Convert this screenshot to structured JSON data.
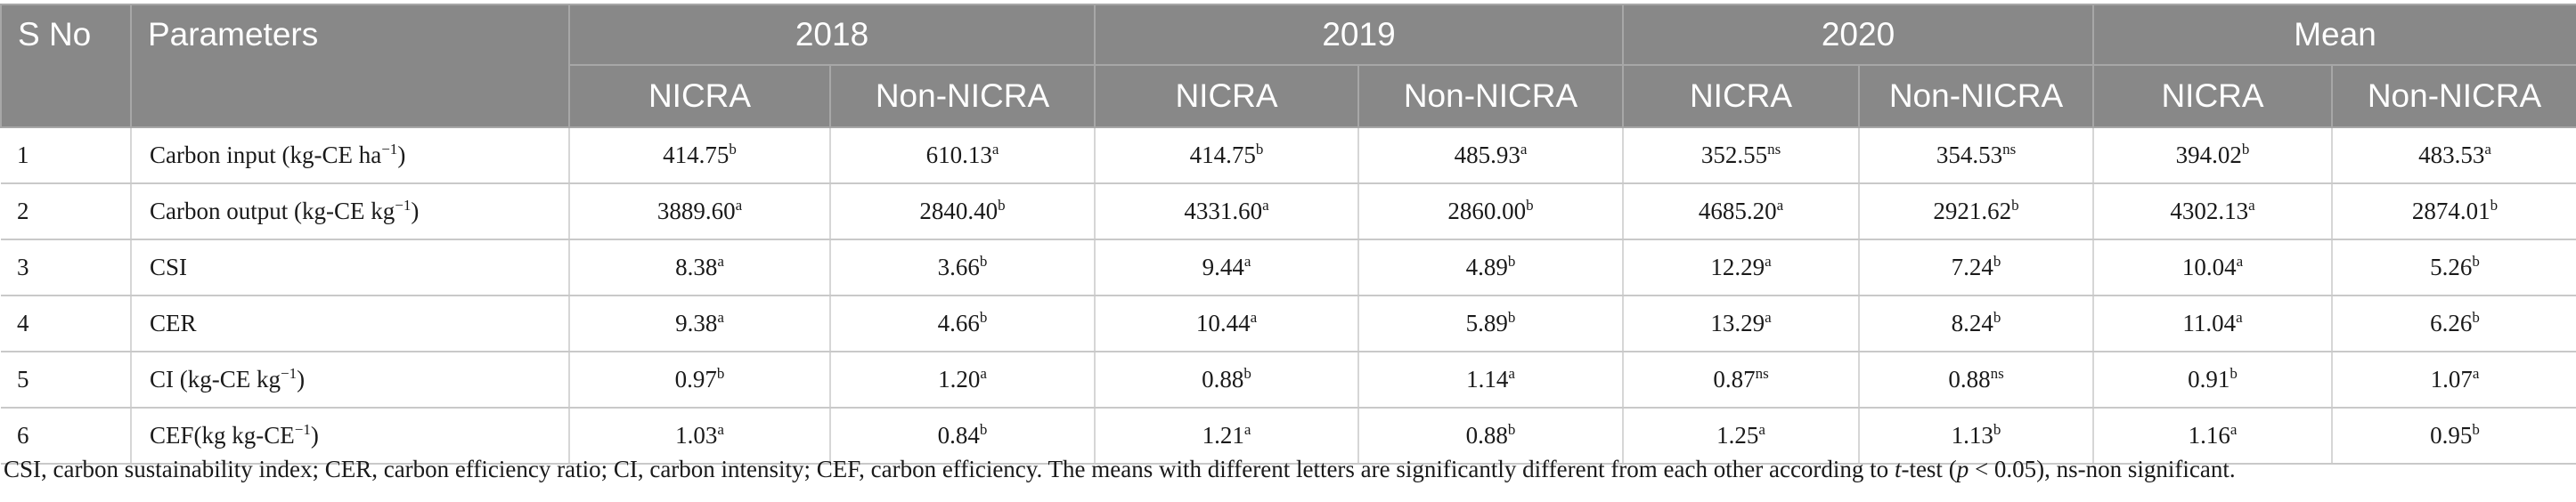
{
  "headers": {
    "sno": "S No",
    "parameters": "Parameters",
    "years": [
      "2018",
      "2019",
      "2020",
      "Mean"
    ],
    "sub": [
      "NICRA",
      "Non-NICRA"
    ]
  },
  "rows": [
    {
      "sno": "1",
      "param": "Carbon input (kg-CE ha",
      "param_sup": "−1",
      "param_tail": ")",
      "values": [
        [
          "414.75",
          "b"
        ],
        [
          "610.13",
          "a"
        ],
        [
          "414.75",
          "b"
        ],
        [
          "485.93",
          "a"
        ],
        [
          "352.55",
          "ns"
        ],
        [
          "354.53",
          "ns"
        ],
        [
          "394.02",
          "b"
        ],
        [
          "483.53",
          "a"
        ]
      ]
    },
    {
      "sno": "2",
      "param": "Carbon output (kg-CE kg",
      "param_sup": "−1",
      "param_tail": ")",
      "values": [
        [
          "3889.60",
          "a"
        ],
        [
          "2840.40",
          "b"
        ],
        [
          "4331.60",
          "a"
        ],
        [
          "2860.00",
          "b"
        ],
        [
          "4685.20",
          "a"
        ],
        [
          "2921.62",
          "b"
        ],
        [
          "4302.13",
          "a"
        ],
        [
          "2874.01",
          "b"
        ]
      ]
    },
    {
      "sno": "3",
      "param": "CSI",
      "param_sup": "",
      "param_tail": "",
      "values": [
        [
          "8.38",
          "a"
        ],
        [
          "3.66",
          "b"
        ],
        [
          "9.44",
          "a"
        ],
        [
          "4.89",
          "b"
        ],
        [
          "12.29",
          "a"
        ],
        [
          "7.24",
          "b"
        ],
        [
          "10.04",
          "a"
        ],
        [
          "5.26",
          "b"
        ]
      ]
    },
    {
      "sno": "4",
      "param": "CER",
      "param_sup": "",
      "param_tail": "",
      "values": [
        [
          "9.38",
          "a"
        ],
        [
          "4.66",
          "b"
        ],
        [
          "10.44",
          "a"
        ],
        [
          "5.89",
          "b"
        ],
        [
          "13.29",
          "a"
        ],
        [
          "8.24",
          "b"
        ],
        [
          "11.04",
          "a"
        ],
        [
          "6.26",
          "b"
        ]
      ]
    },
    {
      "sno": "5",
      "param": "CI (kg-CE kg",
      "param_sup": "−1",
      "param_tail": ")",
      "values": [
        [
          "0.97",
          "b"
        ],
        [
          "1.20",
          "a"
        ],
        [
          "0.88",
          "b"
        ],
        [
          "1.14",
          "a"
        ],
        [
          "0.87",
          "ns"
        ],
        [
          "0.88",
          "ns"
        ],
        [
          "0.91",
          "b"
        ],
        [
          "1.07",
          "a"
        ]
      ]
    },
    {
      "sno": "6",
      "param": "CEF(kg kg-CE",
      "param_sup": "−1",
      "param_tail": ")",
      "values": [
        [
          "1.03",
          "a"
        ],
        [
          "0.84",
          "b"
        ],
        [
          "1.21",
          "a"
        ],
        [
          "0.88",
          "b"
        ],
        [
          "1.25",
          "a"
        ],
        [
          "1.13",
          "b"
        ],
        [
          "1.16",
          "a"
        ],
        [
          "0.95",
          "b"
        ]
      ]
    }
  ],
  "footnote": {
    "pre": "CSI, carbon sustainability index; CER, carbon efficiency ratio; CI, carbon intensity; CEF, carbon efficiency. The means with different letters are significantly different from each other according to ",
    "italic": "t",
    "mid": "-test (",
    "italic2": "p",
    "post": " < 0.05), ns-non significant."
  }
}
